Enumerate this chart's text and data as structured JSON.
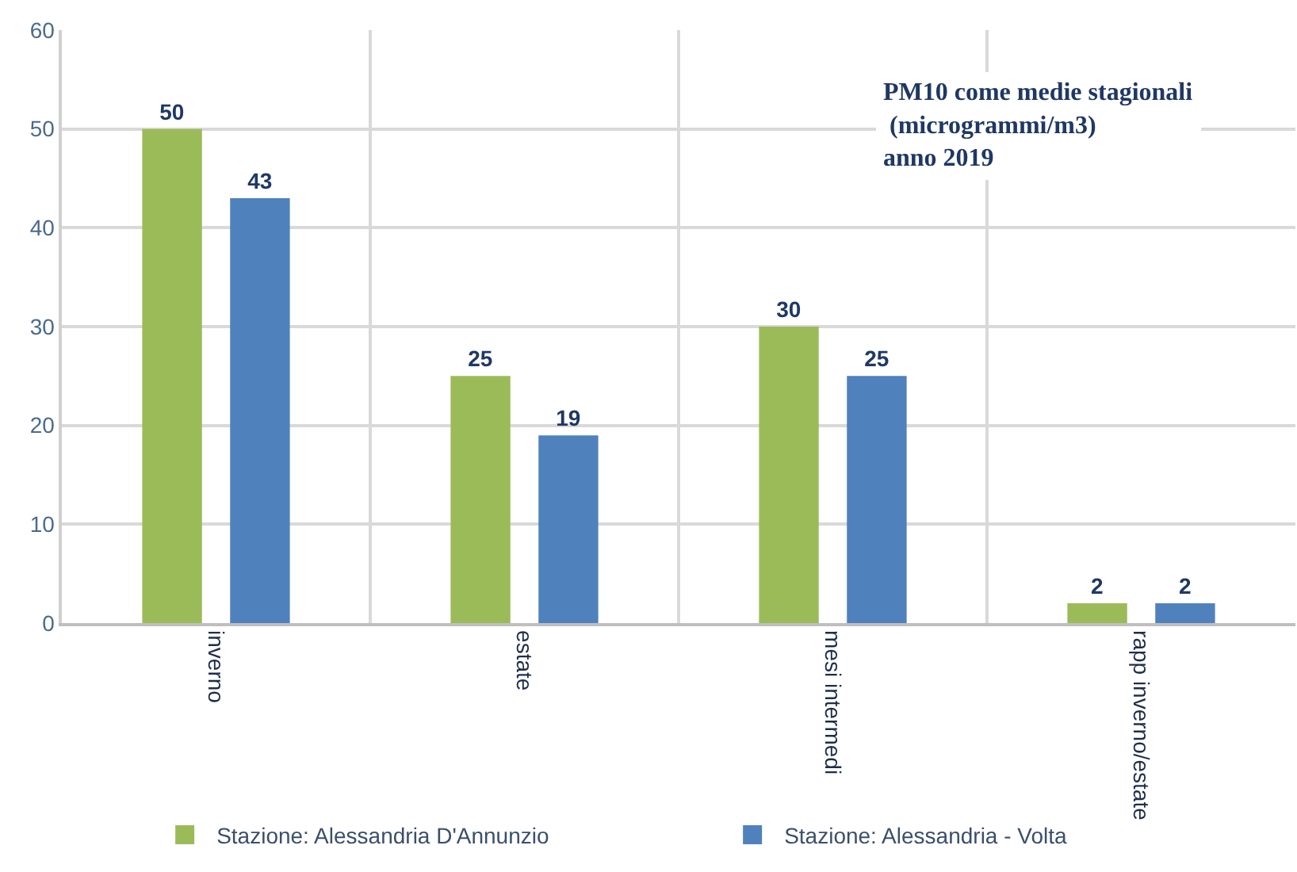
{
  "chart_data": {
    "type": "bar",
    "title": "PM10 come medie stagionali\n (microgrammi/m3)\nanno 2019",
    "categories": [
      "inverno",
      "estate",
      "mesi intermedi",
      "rapp inverno/estate"
    ],
    "series": [
      {
        "name": "Stazione: Alessandria D'Annunzio",
        "color": "#9bbb59",
        "values": [
          50,
          25,
          30,
          2
        ]
      },
      {
        "name": "Stazione: Alessandria - Volta",
        "color": "#4f81bd",
        "values": [
          43,
          19,
          25,
          2
        ]
      }
    ],
    "ylim": [
      0,
      60
    ],
    "yticks": [
      0,
      10,
      20,
      30,
      40,
      50,
      60
    ],
    "grid": true,
    "legend": "bottom",
    "data_labels": true
  }
}
